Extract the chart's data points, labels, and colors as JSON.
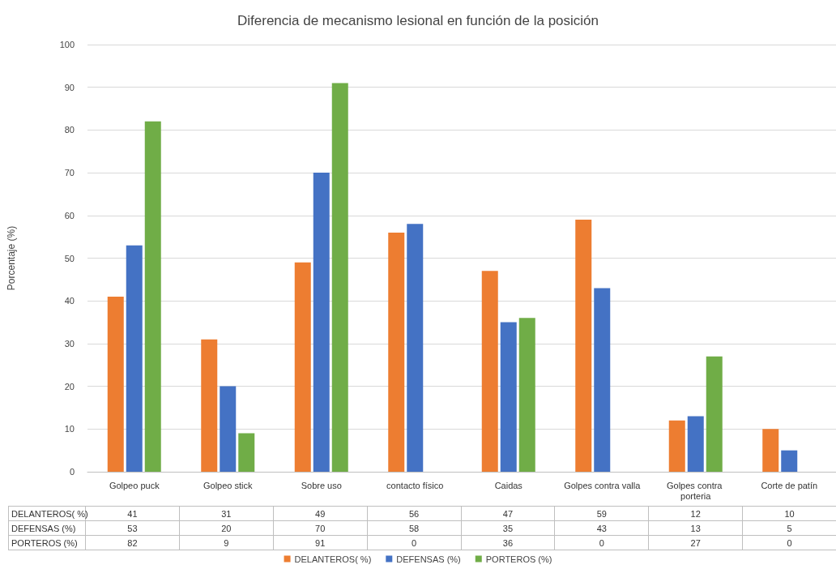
{
  "chart_data": {
    "type": "bar",
    "title": "Diferencia de mecanismo lesional en función de la posición",
    "ylabel": "Porcentaje (%)",
    "categories": [
      "Golpeo puck",
      "Golpeo stick",
      "Sobre uso",
      "contacto físico",
      "Caidas",
      "Golpes contra valla",
      "Golpes contra porteria",
      "Corte de patín"
    ],
    "series": [
      {
        "name": "DELANTEROS( %)",
        "color": "#ed7d31",
        "values": [
          41,
          31,
          49,
          56,
          47,
          59,
          12,
          10
        ]
      },
      {
        "name": "DEFENSAS (%)",
        "color": "#4472c4",
        "values": [
          53,
          20,
          70,
          58,
          35,
          43,
          13,
          5
        ]
      },
      {
        "name": "PORTEROS (%)",
        "color": "#70ad47",
        "values": [
          82,
          9,
          91,
          0,
          36,
          0,
          27,
          0
        ]
      }
    ],
    "ylim": [
      0,
      100
    ],
    "yticks": [
      0,
      10,
      20,
      30,
      40,
      50,
      60,
      70,
      80,
      90,
      100
    ],
    "grid": "y",
    "legend": "bottom",
    "data_labels": true
  }
}
